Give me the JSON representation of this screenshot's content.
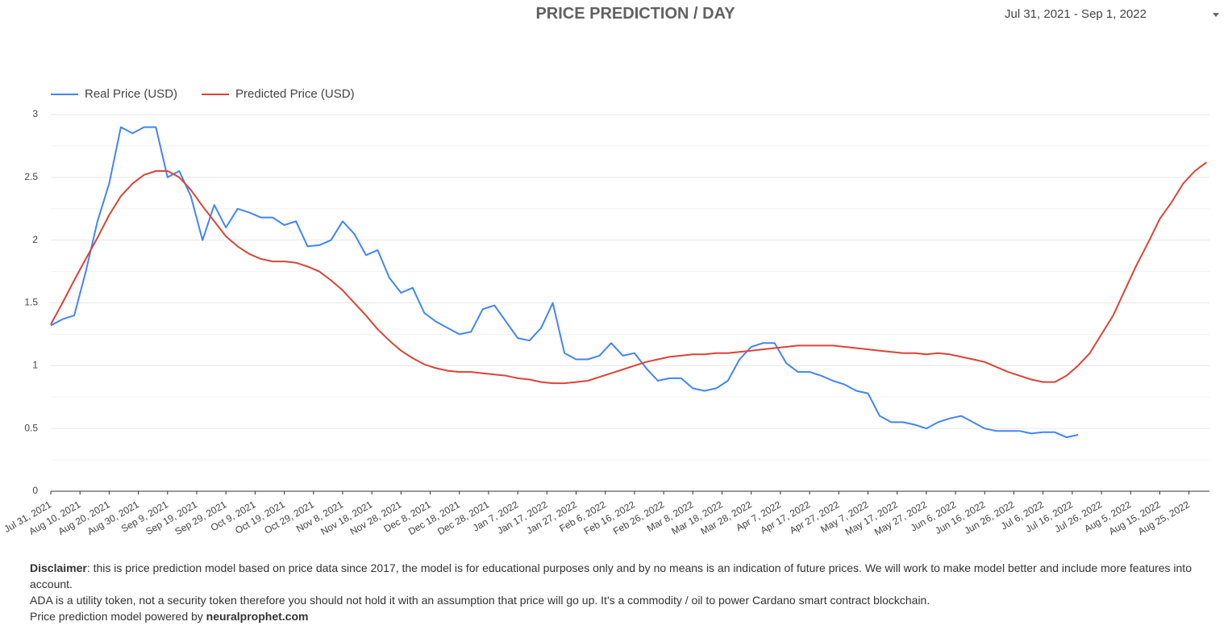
{
  "header": {
    "title": "PRICE PREDICTION / DAY",
    "date_range": "Jul 31, 2021 - Sep 1, 2022"
  },
  "chart_data": {
    "type": "line",
    "grid": true,
    "legend": "top-left",
    "xlim": [
      "2021-07-31",
      "2022-09-01"
    ],
    "ylim": [
      0,
      3.1
    ],
    "yticks": [
      0,
      0.5,
      1,
      1.5,
      2,
      2.5,
      3
    ],
    "minor_yticks": [
      0.25,
      0.75,
      1.25,
      1.75,
      2.25,
      2.75
    ],
    "xticks": [
      {
        "value": "2021-07-31",
        "label": "Jul 31, 2021"
      },
      {
        "value": "2021-08-10",
        "label": "Aug 10, 2021"
      },
      {
        "value": "2021-08-20",
        "label": "Aug 20, 2021"
      },
      {
        "value": "2021-08-30",
        "label": "Aug 30, 2021"
      },
      {
        "value": "2021-09-09",
        "label": "Sep 9, 2021"
      },
      {
        "value": "2021-09-19",
        "label": "Sep 19, 2021"
      },
      {
        "value": "2021-09-29",
        "label": "Sep 29, 2021"
      },
      {
        "value": "2021-10-09",
        "label": "Oct 9, 2021"
      },
      {
        "value": "2021-10-19",
        "label": "Oct 19, 2021"
      },
      {
        "value": "2021-10-29",
        "label": "Oct 29, 2021"
      },
      {
        "value": "2021-11-08",
        "label": "Nov 8, 2021"
      },
      {
        "value": "2021-11-18",
        "label": "Nov 18, 2021"
      },
      {
        "value": "2021-11-28",
        "label": "Nov 28, 2021"
      },
      {
        "value": "2021-12-08",
        "label": "Dec 8, 2021"
      },
      {
        "value": "2021-12-18",
        "label": "Dec 18, 2021"
      },
      {
        "value": "2021-12-28",
        "label": "Dec 28, 2021"
      },
      {
        "value": "2022-01-07",
        "label": "Jan 7, 2022"
      },
      {
        "value": "2022-01-17",
        "label": "Jan 17, 2022"
      },
      {
        "value": "2022-01-27",
        "label": "Jan 27, 2022"
      },
      {
        "value": "2022-02-06",
        "label": "Feb 6, 2022"
      },
      {
        "value": "2022-02-16",
        "label": "Feb 16, 2022"
      },
      {
        "value": "2022-02-26",
        "label": "Feb 26, 2022"
      },
      {
        "value": "2022-03-08",
        "label": "Mar 8, 2022"
      },
      {
        "value": "2022-03-18",
        "label": "Mar 18, 2022"
      },
      {
        "value": "2022-03-28",
        "label": "Mar 28, 2022"
      },
      {
        "value": "2022-04-07",
        "label": "Apr 7, 2022"
      },
      {
        "value": "2022-04-17",
        "label": "Apr 17, 2022"
      },
      {
        "value": "2022-04-27",
        "label": "Apr 27, 2022"
      },
      {
        "value": "2022-05-07",
        "label": "May 7, 2022"
      },
      {
        "value": "2022-05-17",
        "label": "May 17, 2022"
      },
      {
        "value": "2022-05-27",
        "label": "May 27, 2022"
      },
      {
        "value": "2022-06-06",
        "label": "Jun 6, 2022"
      },
      {
        "value": "2022-06-16",
        "label": "Jun 16, 2022"
      },
      {
        "value": "2022-06-26",
        "label": "Jun 26, 2022"
      },
      {
        "value": "2022-07-06",
        "label": "Jul 6, 2022"
      },
      {
        "value": "2022-07-16",
        "label": "Jul 16, 2022"
      },
      {
        "value": "2022-07-26",
        "label": "Jul 26, 2022"
      },
      {
        "value": "2022-08-05",
        "label": "Aug 5, 2022"
      },
      {
        "value": "2022-08-15",
        "label": "Aug 15, 2022"
      },
      {
        "value": "2022-08-25",
        "label": "Aug 25, 2022"
      }
    ],
    "x": [
      "2021-07-31",
      "2021-08-04",
      "2021-08-08",
      "2021-08-12",
      "2021-08-16",
      "2021-08-20",
      "2021-08-24",
      "2021-08-28",
      "2021-09-01",
      "2021-09-05",
      "2021-09-09",
      "2021-09-13",
      "2021-09-17",
      "2021-09-21",
      "2021-09-25",
      "2021-09-29",
      "2021-10-03",
      "2021-10-07",
      "2021-10-11",
      "2021-10-15",
      "2021-10-19",
      "2021-10-23",
      "2021-10-27",
      "2021-10-31",
      "2021-11-04",
      "2021-11-08",
      "2021-11-12",
      "2021-11-16",
      "2021-11-20",
      "2021-11-24",
      "2021-11-28",
      "2021-12-02",
      "2021-12-06",
      "2021-12-10",
      "2021-12-14",
      "2021-12-18",
      "2021-12-22",
      "2021-12-26",
      "2021-12-30",
      "2022-01-03",
      "2022-01-07",
      "2022-01-11",
      "2022-01-15",
      "2022-01-19",
      "2022-01-23",
      "2022-01-27",
      "2022-01-31",
      "2022-02-04",
      "2022-02-08",
      "2022-02-12",
      "2022-02-16",
      "2022-02-20",
      "2022-02-24",
      "2022-02-28",
      "2022-03-04",
      "2022-03-08",
      "2022-03-12",
      "2022-03-16",
      "2022-03-20",
      "2022-03-24",
      "2022-03-28",
      "2022-04-01",
      "2022-04-05",
      "2022-04-09",
      "2022-04-13",
      "2022-04-17",
      "2022-04-21",
      "2022-04-25",
      "2022-04-29",
      "2022-05-03",
      "2022-05-07",
      "2022-05-11",
      "2022-05-15",
      "2022-05-19",
      "2022-05-23",
      "2022-05-27",
      "2022-05-31",
      "2022-06-04",
      "2022-06-08",
      "2022-06-12",
      "2022-06-16",
      "2022-06-20",
      "2022-06-24",
      "2022-06-28",
      "2022-07-02",
      "2022-07-06",
      "2022-07-10",
      "2022-07-14",
      "2022-07-18",
      "2022-07-22",
      "2022-07-26",
      "2022-07-30",
      "2022-08-03",
      "2022-08-07",
      "2022-08-11",
      "2022-08-15",
      "2022-08-19",
      "2022-08-23",
      "2022-08-27",
      "2022-08-31"
    ],
    "series": [
      {
        "name": "Real Price (USD)",
        "color": "#4285f4",
        "values": [
          1.32,
          1.37,
          1.4,
          1.75,
          2.15,
          2.45,
          2.9,
          2.85,
          2.9,
          2.9,
          2.5,
          2.55,
          2.35,
          2.0,
          2.28,
          2.1,
          2.25,
          2.22,
          2.18,
          2.18,
          2.12,
          2.15,
          1.95,
          1.96,
          2.0,
          2.15,
          2.05,
          1.88,
          1.92,
          1.7,
          1.58,
          1.62,
          1.42,
          1.35,
          1.3,
          1.25,
          1.27,
          1.45,
          1.48,
          1.35,
          1.22,
          1.2,
          1.3,
          1.5,
          1.1,
          1.05,
          1.05,
          1.08,
          1.18,
          1.08,
          1.1,
          0.98,
          0.88,
          0.9,
          0.9,
          0.82,
          0.8,
          0.82,
          0.88,
          1.05,
          1.15,
          1.18,
          1.18,
          1.02,
          0.95,
          0.95,
          0.92,
          0.88,
          0.85,
          0.8,
          0.78,
          0.6,
          0.55,
          0.55,
          0.53,
          0.5,
          0.55,
          0.58,
          0.6,
          0.55,
          0.5,
          0.48,
          0.48,
          0.48,
          0.46,
          0.47,
          0.47,
          0.43,
          0.45,
          null,
          null,
          null,
          null,
          null,
          null,
          null,
          null,
          null,
          null,
          null
        ]
      },
      {
        "name": "Predicted Price (USD)",
        "color": "#db4437",
        "values": [
          1.33,
          1.5,
          1.68,
          1.85,
          2.02,
          2.2,
          2.35,
          2.45,
          2.52,
          2.55,
          2.55,
          2.5,
          2.4,
          2.27,
          2.15,
          2.03,
          1.95,
          1.89,
          1.85,
          1.83,
          1.83,
          1.82,
          1.79,
          1.75,
          1.68,
          1.6,
          1.5,
          1.4,
          1.29,
          1.2,
          1.12,
          1.06,
          1.01,
          0.98,
          0.96,
          0.95,
          0.95,
          0.94,
          0.93,
          0.92,
          0.9,
          0.89,
          0.87,
          0.86,
          0.86,
          0.87,
          0.88,
          0.91,
          0.94,
          0.97,
          1.0,
          1.03,
          1.05,
          1.07,
          1.08,
          1.09,
          1.09,
          1.1,
          1.1,
          1.11,
          1.12,
          1.13,
          1.14,
          1.15,
          1.16,
          1.16,
          1.16,
          1.16,
          1.15,
          1.14,
          1.13,
          1.12,
          1.11,
          1.1,
          1.1,
          1.09,
          1.1,
          1.09,
          1.07,
          1.05,
          1.03,
          0.99,
          0.95,
          0.92,
          0.89,
          0.87,
          0.87,
          0.92,
          1.0,
          1.1,
          1.25,
          1.4,
          1.6,
          1.8,
          1.98,
          2.17,
          2.3,
          2.45,
          2.55,
          2.62
        ]
      }
    ]
  },
  "footer": {
    "disclaimer_label": "Disclaimer",
    "disclaimer_text": ": this is price prediction model based on price data since 2017, the model is for educational purposes only and by no means is an indication of future prices. We will work to make model better and include more features into account.",
    "note": "ADA is a utility token, not a security token therefore you should not hold it with an assumption that price will go up. It's a commodity / oil to power Cardano smart contract blockchain.",
    "powered_by": "Price prediction model powered by ",
    "link": "neuralprophet.com"
  }
}
